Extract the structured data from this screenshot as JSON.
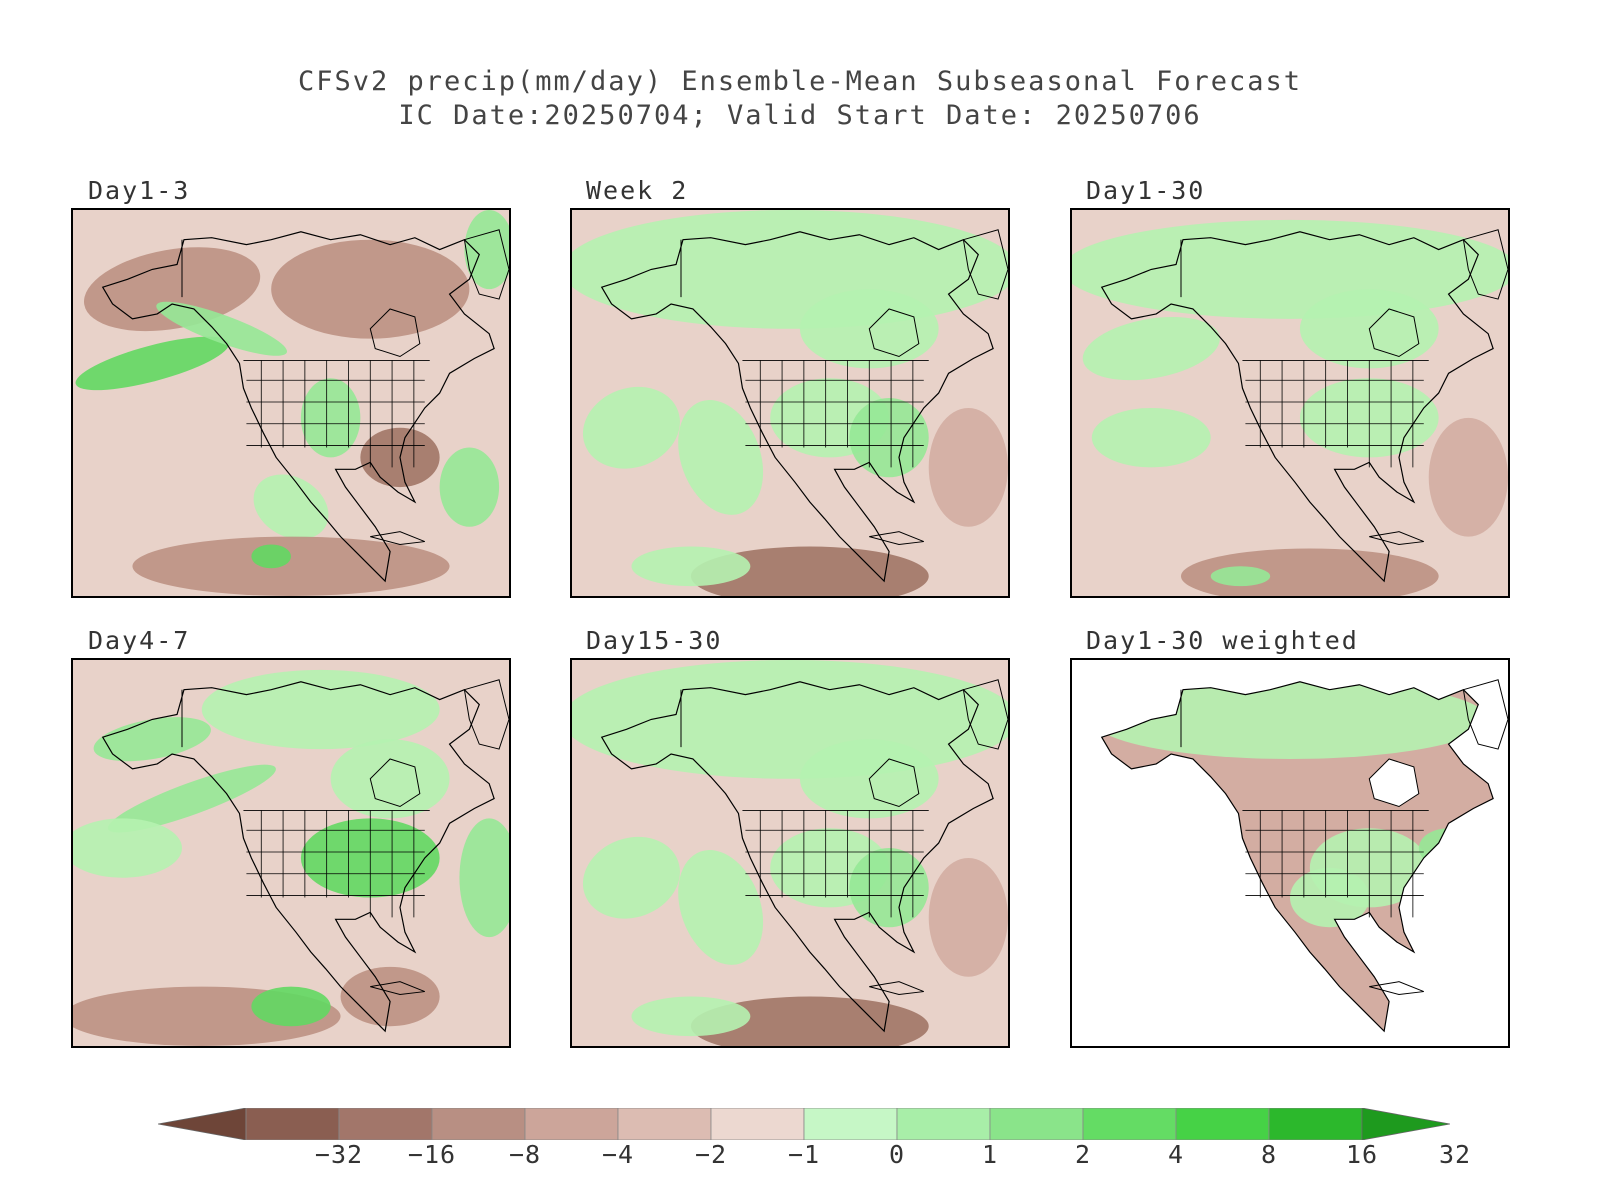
{
  "title": {
    "line1": "CFSv2 precip(mm/day) Ensemble-Mean Subseasonal Forecast",
    "line2": "IC Date:20250704; Valid Start Date: 20250706"
  },
  "panels": [
    {
      "label": "Day1-3",
      "style": "mixed-dry",
      "masked_ocean": false
    },
    {
      "label": "Week 2",
      "style": "wet-north",
      "masked_ocean": false
    },
    {
      "label": "Day1-30",
      "style": "mixed",
      "masked_ocean": false
    },
    {
      "label": "Day4-7",
      "style": "mixed-wet",
      "masked_ocean": false
    },
    {
      "label": "Day15-30",
      "style": "wet-north",
      "masked_ocean": false
    },
    {
      "label": "Day1-30 weighted",
      "style": "land-only",
      "masked_ocean": true
    }
  ],
  "colorbar": {
    "labels": [
      "-32",
      "-16",
      "-8",
      "-4",
      "-2",
      "-1",
      "0",
      "1",
      "2",
      "4",
      "8",
      "16",
      "32"
    ],
    "colors": [
      "#6e4538",
      "#8a5e51",
      "#a2766a",
      "#b88f83",
      "#cca59a",
      "#dcbcb2",
      "#ecd8d0",
      "#c6f7c6",
      "#a8eea8",
      "#8ae48a",
      "#64dc64",
      "#46d246",
      "#2cb82c",
      "#1e9a1e"
    ]
  },
  "palette": {
    "dry3": "#a17566",
    "dry2": "#bd9183",
    "dry1": "#d3ada2",
    "neutral": "#e8d2c9",
    "wet1": "#b5f2b0",
    "wet2": "#96e896",
    "wet3": "#62d862",
    "land_line": "#000000"
  }
}
